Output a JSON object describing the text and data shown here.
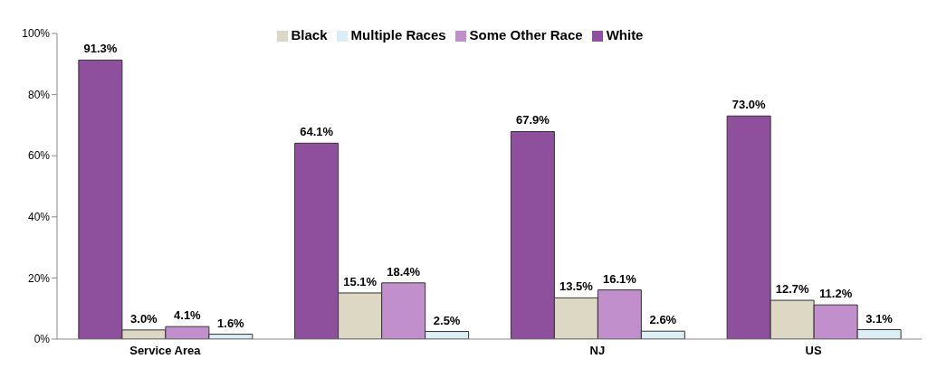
{
  "chart_data": {
    "type": "bar",
    "categories": [
      "Service Area",
      null,
      "NJ",
      "US"
    ],
    "series": [
      {
        "name": "White",
        "color": "#8e4f9d",
        "values": [
          91.3,
          64.1,
          67.9,
          73.0
        ],
        "value_labels": [
          "91.3%",
          "64.1%",
          "67.9%",
          "73.0%"
        ]
      },
      {
        "name": "Black",
        "color": "#ddd8c4",
        "values": [
          3.0,
          15.1,
          13.5,
          12.7
        ],
        "value_labels": [
          "3.0%",
          "15.1%",
          "13.5%",
          "12.7%"
        ]
      },
      {
        "name": "Some Other Race",
        "color": "#c18fcb",
        "values": [
          4.1,
          18.4,
          16.1,
          11.2
        ],
        "value_labels": [
          "4.1%",
          "18.4%",
          "16.1%",
          "11.2%"
        ]
      },
      {
        "name": "Multiple Races",
        "color": "#dbeef4",
        "values": [
          1.6,
          2.5,
          2.6,
          3.1
        ],
        "value_labels": [
          "1.6%",
          "2.5%",
          "2.6%",
          "3.1%"
        ]
      }
    ],
    "ylim": [
      0,
      100
    ],
    "yticks": [
      {
        "value": 0,
        "label": "0%"
      },
      {
        "value": 20,
        "label": "20%"
      },
      {
        "value": 40,
        "label": "40%"
      },
      {
        "value": 60,
        "label": "60%"
      },
      {
        "value": 80,
        "label": "80%"
      },
      {
        "value": 100,
        "label": "100%"
      }
    ],
    "grid": false,
    "legend": "top"
  }
}
